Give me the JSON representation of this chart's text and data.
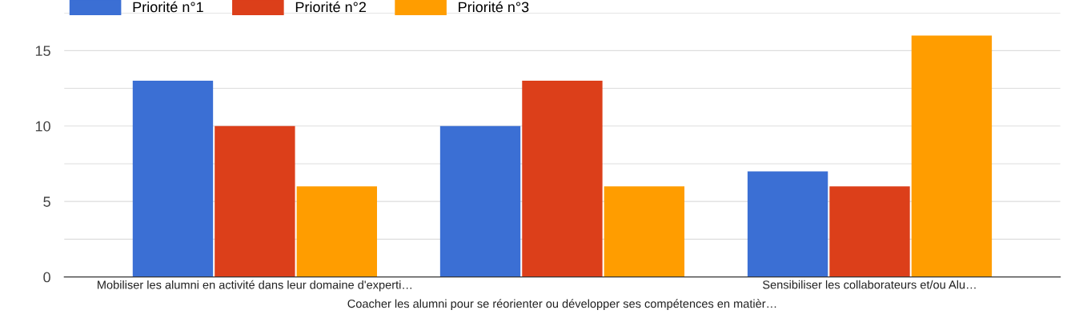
{
  "chart_data": {
    "type": "bar",
    "categories": [
      "Mobiliser les alumni en activité dans leur domaine d'experti…",
      "Coacher les alumni pour se réorienter ou développer ses compétences en matièr…",
      "Sensibiliser les collaborateurs et/ou Alu…"
    ],
    "series": [
      {
        "name": "Priorité n°1",
        "color": "#3b6fd4",
        "values": [
          13,
          10,
          7
        ]
      },
      {
        "name": "Priorité n°2",
        "color": "#dc3f1a",
        "values": [
          10,
          13,
          6
        ]
      },
      {
        "name": "Priorité n°3",
        "color": "#ff9d00",
        "values": [
          6,
          6,
          16
        ]
      }
    ],
    "ylim": [
      0,
      17.5
    ],
    "yticks": [
      0,
      {
        "value": 2.5,
        "label": null
      },
      5,
      {
        "value": 7.5,
        "label": null
      },
      10,
      {
        "value": 12.5,
        "label": null
      },
      15,
      {
        "value": 17.5,
        "label": null
      }
    ],
    "grid": "y",
    "legend": "top left"
  }
}
